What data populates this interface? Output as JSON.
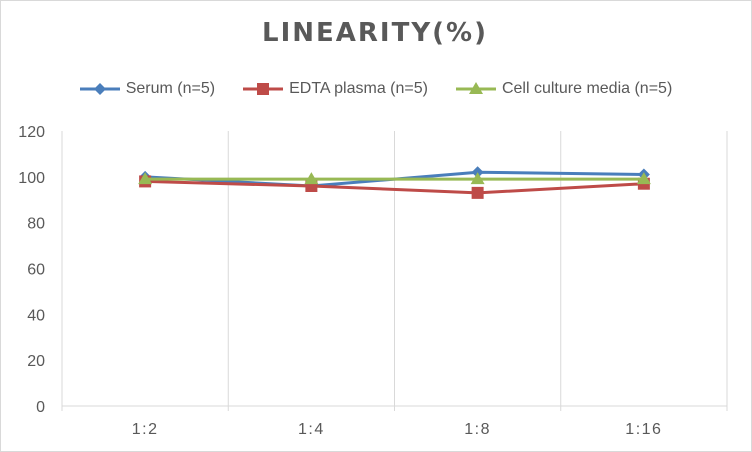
{
  "chart_data": {
    "type": "line",
    "title": "LINEARITY(%)",
    "xlabel": "",
    "ylabel": "",
    "categories": [
      "1:2",
      "1:4",
      "1:8",
      "1:16"
    ],
    "ylim": [
      0,
      120
    ],
    "yticks": [
      0,
      20,
      40,
      60,
      80,
      100,
      120
    ],
    "grid": "vertical",
    "legend": "top",
    "series": [
      {
        "name": "Serum (n=5)",
        "values": [
          100,
          96,
          102,
          101
        ],
        "color": "#4a7ebb",
        "marker": "diamond"
      },
      {
        "name": "EDTA plasma (n=5)",
        "values": [
          98,
          96,
          93,
          97
        ],
        "color": "#be4b48",
        "marker": "square"
      },
      {
        "name": "Cell culture media (n=5)",
        "values": [
          99,
          99,
          99,
          99
        ],
        "color": "#98b954",
        "marker": "triangle"
      }
    ]
  }
}
